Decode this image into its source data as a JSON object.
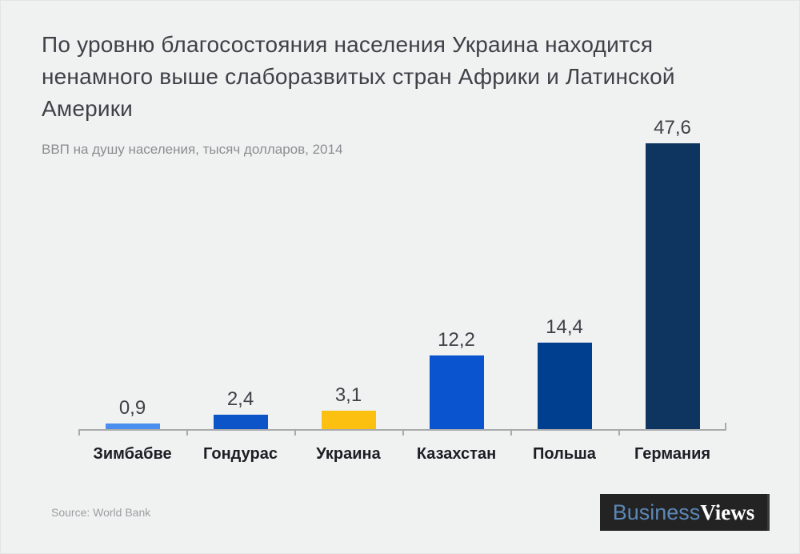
{
  "title": "По уровню благосостояния населения Украина находится ненамного выше слаборазвитых стран Африки и Латинской Америки",
  "subtitle": "ВВП на душу населения, тысяч долларов, 2014",
  "source": {
    "text": "Source: World Bank"
  },
  "logo": {
    "part1": "Business",
    "part2": "Views"
  },
  "colors": {
    "background": "#f0f1f1",
    "title_text": "#3e4247",
    "subtitle_text": "#8b8e91",
    "axis": "#a9aaab",
    "value_label_text": "#3e4247",
    "category_label_text": "#1b1e23",
    "source_text": "#9b9ea1",
    "logo_background": "#232323",
    "logo_part1_text": "#5b87b7",
    "logo_part2_text": "#ffffff"
  },
  "chart_data": {
    "type": "bar",
    "title": "По уровню благосостояния населения Украина находится ненамного выше слаборазвитых стран Африки и Латинской Америки",
    "subtitle": "ВВП на душу населения, тысяч долларов, 2014",
    "categories": [
      "Зимбабве",
      "Гондурас",
      "Украина",
      "Казахстан",
      "Польша",
      "Германия"
    ],
    "values": [
      0.9,
      2.4,
      3.1,
      12.2,
      14.4,
      47.6
    ],
    "value_labels": [
      "0,9",
      "2,4",
      "3,1",
      "12,2",
      "14,4",
      "47,6"
    ],
    "bar_colors": [
      "#4a8ef0",
      "#0b55c9",
      "#fcc011",
      "#0a55cf",
      "#003e90",
      "#0d3560"
    ],
    "xlabel": "",
    "ylabel": "ВВП на душу населения, тысяч долларов",
    "ylim": [
      0,
      50
    ],
    "grid": false,
    "legend": null,
    "source": "World Bank",
    "year": 2014,
    "pixels_per_unit": 7.5
  }
}
